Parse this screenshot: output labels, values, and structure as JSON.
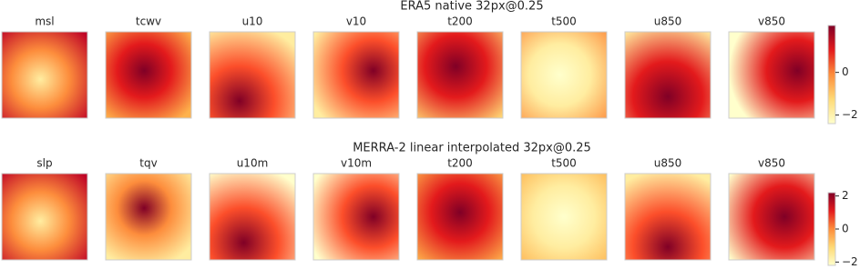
{
  "chart_data": [
    {
      "type": "heatmap",
      "title": "ERA5 native 32px@0.25",
      "panels": [
        "msl",
        "tcwv",
        "u10",
        "v10",
        "t200",
        "t500",
        "u850",
        "v850"
      ],
      "clim": [
        -2.4,
        2.2
      ],
      "ticks": [
        {
          "value": 0,
          "label": "0"
        },
        {
          "value": -2,
          "label": "−2"
        }
      ]
    },
    {
      "type": "heatmap",
      "title": "MERRA-2 linear interpolated 32px@0.25",
      "panels": [
        "slp",
        "tqv",
        "u10m",
        "v10m",
        "t200",
        "t500",
        "u850",
        "v850"
      ],
      "clim": [
        -2.2,
        2.2
      ],
      "ticks": [
        {
          "value": 2,
          "label": "2"
        },
        {
          "value": 0,
          "label": "0"
        },
        {
          "value": -2,
          "label": "−2"
        }
      ]
    }
  ]
}
